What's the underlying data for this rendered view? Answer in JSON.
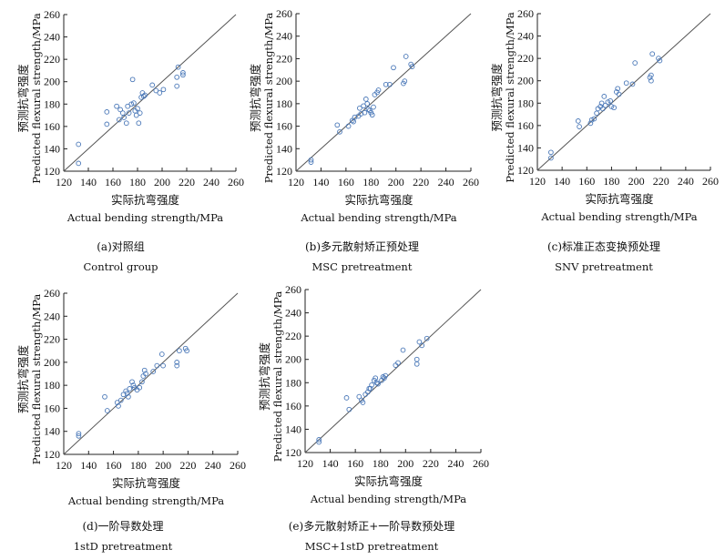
{
  "chart_data": [
    {
      "type": "scatter",
      "xlabel_zh": "实际抗弯强度",
      "xlabel_en": "Actual bending strength/MPa",
      "ylabel_zh": "预测抗弯强度",
      "ylabel_en": "Predicted flexural strength/MPa",
      "caption_zh": "(a)对照组",
      "caption_en": "Control group",
      "xlim": [
        120,
        260
      ],
      "ylim": [
        120,
        260
      ],
      "xticks": [
        "120",
        "140",
        "160",
        "180",
        "200",
        "220",
        "240",
        "260"
      ],
      "yticks": [
        "120",
        "140",
        "160",
        "180",
        "200",
        "220",
        "240",
        "260"
      ],
      "reference_line": "y = x",
      "points": [
        [
          132,
          144
        ],
        [
          132,
          127
        ],
        [
          155,
          173
        ],
        [
          155,
          162
        ],
        [
          163,
          178
        ],
        [
          165,
          166
        ],
        [
          166,
          175
        ],
        [
          168,
          172
        ],
        [
          169,
          168
        ],
        [
          171,
          163
        ],
        [
          172,
          178
        ],
        [
          173,
          172
        ],
        [
          175,
          180
        ],
        [
          176,
          202
        ],
        [
          177,
          181
        ],
        [
          178,
          174
        ],
        [
          179,
          170
        ],
        [
          180,
          176
        ],
        [
          181,
          163
        ],
        [
          182,
          172
        ],
        [
          183,
          186
        ],
        [
          184,
          190
        ],
        [
          185,
          187
        ],
        [
          186,
          188
        ],
        [
          192,
          197
        ],
        [
          195,
          192
        ],
        [
          198,
          190
        ],
        [
          201,
          193
        ],
        [
          212,
          196
        ],
        [
          212,
          204
        ],
        [
          213,
          213
        ],
        [
          217,
          208
        ],
        [
          217,
          206
        ]
      ]
    },
    {
      "type": "scatter",
      "xlabel_zh": "实际抗弯强度",
      "xlabel_en": "Actual bending strength/MPa",
      "ylabel_zh": "预测抗弯强度",
      "ylabel_en": "Predicted flexural strength/MPa",
      "caption_zh": "(b)多元散射矫正预处理",
      "caption_en": "MSC pretreatment",
      "xlim": [
        120,
        260
      ],
      "ylim": [
        120,
        260
      ],
      "xticks": [
        "120",
        "140",
        "160",
        "180",
        "200",
        "220",
        "240",
        "260"
      ],
      "yticks": [
        "120",
        "140",
        "160",
        "180",
        "200",
        "220",
        "240",
        "260"
      ],
      "reference_line": "y = x",
      "points": [
        [
          132,
          130
        ],
        [
          132,
          128
        ],
        [
          153,
          161
        ],
        [
          155,
          155
        ],
        [
          162,
          160
        ],
        [
          165,
          165
        ],
        [
          166,
          164
        ],
        [
          167,
          168
        ],
        [
          170,
          169
        ],
        [
          171,
          176
        ],
        [
          172,
          171
        ],
        [
          174,
          178
        ],
        [
          175,
          172
        ],
        [
          176,
          184
        ],
        [
          177,
          180
        ],
        [
          178,
          175
        ],
        [
          179,
          174
        ],
        [
          180,
          172
        ],
        [
          181,
          170
        ],
        [
          182,
          177
        ],
        [
          183,
          188
        ],
        [
          185,
          190
        ],
        [
          186,
          192
        ],
        [
          192,
          197
        ],
        [
          195,
          197
        ],
        [
          198,
          212
        ],
        [
          206,
          198
        ],
        [
          207,
          200
        ],
        [
          208,
          222
        ],
        [
          212,
          215
        ],
        [
          213,
          213
        ]
      ]
    },
    {
      "type": "scatter",
      "xlabel_zh": "实际抗弯强度",
      "xlabel_en": "Actual bending strength/MPa",
      "ylabel_zh": "预测抗弯强度",
      "ylabel_en": "Predicted flexural strength/MPa",
      "caption_zh": "(c)标准正态变换预处理",
      "caption_en": "SNV pretreatment",
      "xlim": [
        120,
        260
      ],
      "ylim": [
        120,
        260
      ],
      "xticks": [
        "120",
        "140",
        "160",
        "180",
        "200",
        "220",
        "240",
        "260"
      ],
      "yticks": [
        "120",
        "140",
        "160",
        "180",
        "200",
        "220",
        "240",
        "260"
      ],
      "reference_line": "y = x",
      "points": [
        [
          131,
          136
        ],
        [
          131,
          131
        ],
        [
          153,
          164
        ],
        [
          154,
          159
        ],
        [
          163,
          162
        ],
        [
          164,
          165
        ],
        [
          166,
          166
        ],
        [
          168,
          171
        ],
        [
          169,
          175
        ],
        [
          171,
          177
        ],
        [
          172,
          180
        ],
        [
          173,
          175
        ],
        [
          174,
          186
        ],
        [
          175,
          178
        ],
        [
          177,
          181
        ],
        [
          179,
          182
        ],
        [
          180,
          177
        ],
        [
          182,
          176
        ],
        [
          184,
          190
        ],
        [
          185,
          193
        ],
        [
          186,
          188
        ],
        [
          192,
          198
        ],
        [
          197,
          197
        ],
        [
          199,
          216
        ],
        [
          211,
          203
        ],
        [
          212,
          205
        ],
        [
          212,
          200
        ],
        [
          213,
          224
        ],
        [
          218,
          220
        ],
        [
          219,
          218
        ]
      ]
    },
    {
      "type": "scatter",
      "xlabel_zh": "实际抗弯强度",
      "xlabel_en": "Actual bending strength/MPa",
      "ylabel_zh": "预测抗弯强度",
      "ylabel_en": "Predicted flexural strength/MPa",
      "caption_zh": "(d)一阶导数处理",
      "caption_en": "1stD pretreatment",
      "xlim": [
        120,
        260
      ],
      "ylim": [
        120,
        260
      ],
      "xticks": [
        "120",
        "140",
        "160",
        "180",
        "200",
        "220",
        "240",
        "260"
      ],
      "yticks": [
        "120",
        "140",
        "160",
        "180",
        "200",
        "220",
        "240",
        "260"
      ],
      "reference_line": "y = x",
      "points": [
        [
          132,
          138
        ],
        [
          132,
          136
        ],
        [
          153,
          170
        ],
        [
          155,
          158
        ],
        [
          163,
          165
        ],
        [
          164,
          162
        ],
        [
          166,
          167
        ],
        [
          168,
          172
        ],
        [
          170,
          175
        ],
        [
          171,
          173
        ],
        [
          172,
          170
        ],
        [
          173,
          177
        ],
        [
          175,
          183
        ],
        [
          176,
          180
        ],
        [
          177,
          178
        ],
        [
          179,
          176
        ],
        [
          181,
          178
        ],
        [
          183,
          183
        ],
        [
          184,
          188
        ],
        [
          185,
          193
        ],
        [
          186,
          190
        ],
        [
          192,
          192
        ],
        [
          195,
          197
        ],
        [
          199,
          207
        ],
        [
          200,
          197
        ],
        [
          211,
          200
        ],
        [
          211,
          197
        ],
        [
          213,
          210
        ],
        [
          218,
          212
        ],
        [
          219,
          210
        ]
      ]
    },
    {
      "type": "scatter",
      "xlabel_zh": "实际抗弯强度",
      "xlabel_en": "Actual bending strength/MPa",
      "ylabel_zh": "预测抗弯强度",
      "ylabel_en": "Predicted flexural strength/MPa",
      "caption_zh": "(e)多元散射矫正+一阶导数预处理",
      "caption_en": "MSC+1stD pretreatment",
      "xlim": [
        120,
        260
      ],
      "ylim": [
        120,
        260
      ],
      "xticks": [
        "120",
        "140",
        "160",
        "180",
        "200",
        "220",
        "240",
        "260"
      ],
      "yticks": [
        "120",
        "140",
        "160",
        "180",
        "200",
        "220",
        "240",
        "260"
      ],
      "reference_line": "y = x",
      "points": [
        [
          131,
          131
        ],
        [
          131,
          129
        ],
        [
          153,
          167
        ],
        [
          155,
          157
        ],
        [
          163,
          168
        ],
        [
          165,
          165
        ],
        [
          166,
          163
        ],
        [
          168,
          170
        ],
        [
          170,
          172
        ],
        [
          171,
          175
        ],
        [
          172,
          175
        ],
        [
          173,
          178
        ],
        [
          175,
          182
        ],
        [
          176,
          184
        ],
        [
          177,
          180
        ],
        [
          178,
          179
        ],
        [
          181,
          182
        ],
        [
          182,
          185
        ],
        [
          183,
          184
        ],
        [
          184,
          186
        ],
        [
          192,
          195
        ],
        [
          194,
          197
        ],
        [
          198,
          208
        ],
        [
          209,
          200
        ],
        [
          209,
          196
        ],
        [
          211,
          215
        ],
        [
          213,
          212
        ],
        [
          217,
          218
        ]
      ]
    }
  ]
}
